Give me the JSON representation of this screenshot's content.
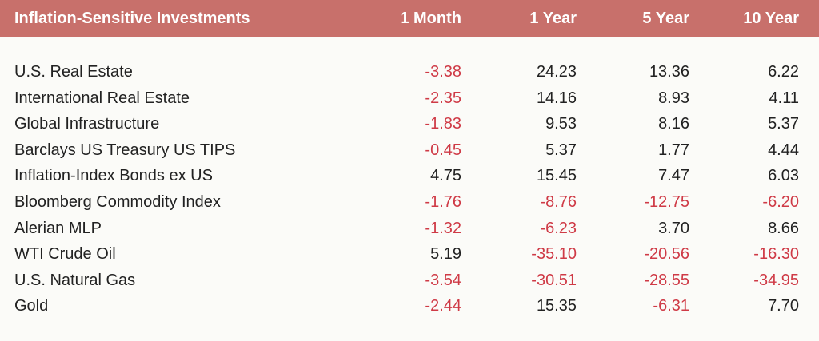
{
  "table": {
    "header": {
      "title": "Inflation-Sensitive Investments",
      "columns": [
        "1 Month",
        "1 Year",
        "5 Year",
        "10 Year"
      ]
    },
    "rows": [
      {
        "name": "U.S. Real Estate",
        "values": [
          "-3.38",
          "24.23",
          "13.36",
          "6.22"
        ]
      },
      {
        "name": "International Real Estate",
        "values": [
          "-2.35",
          "14.16",
          "8.93",
          "4.11"
        ]
      },
      {
        "name": "Global Infrastructure",
        "values": [
          "-1.83",
          "9.53",
          "8.16",
          "5.37"
        ]
      },
      {
        "name": "Barclays US Treasury US TIPS",
        "values": [
          "-0.45",
          "5.37",
          "1.77",
          "4.44"
        ]
      },
      {
        "name": "Inflation-Index Bonds ex US",
        "values": [
          "4.75",
          "15.45",
          "7.47",
          "6.03"
        ]
      },
      {
        "name": "Bloomberg Commodity Index",
        "values": [
          "-1.76",
          "-8.76",
          "-12.75",
          "-6.20"
        ]
      },
      {
        "name": "Alerian MLP",
        "values": [
          "-1.32",
          "-6.23",
          "3.70",
          "8.66"
        ]
      },
      {
        "name": "WTI Crude Oil",
        "values": [
          "5.19",
          "-35.10",
          "-20.56",
          "-16.30"
        ]
      },
      {
        "name": "U.S. Natural Gas",
        "values": [
          "-3.54",
          "-30.51",
          "-28.55",
          "-34.95"
        ]
      },
      {
        "name": "Gold",
        "values": [
          "-2.44",
          "15.35",
          "-6.31",
          "7.70"
        ]
      }
    ]
  },
  "colors": {
    "header_bg": "#c8706b",
    "header_text": "#ffffff",
    "negative": "#cf3a46",
    "positive": "#222222",
    "background": "#fbfbf8"
  }
}
